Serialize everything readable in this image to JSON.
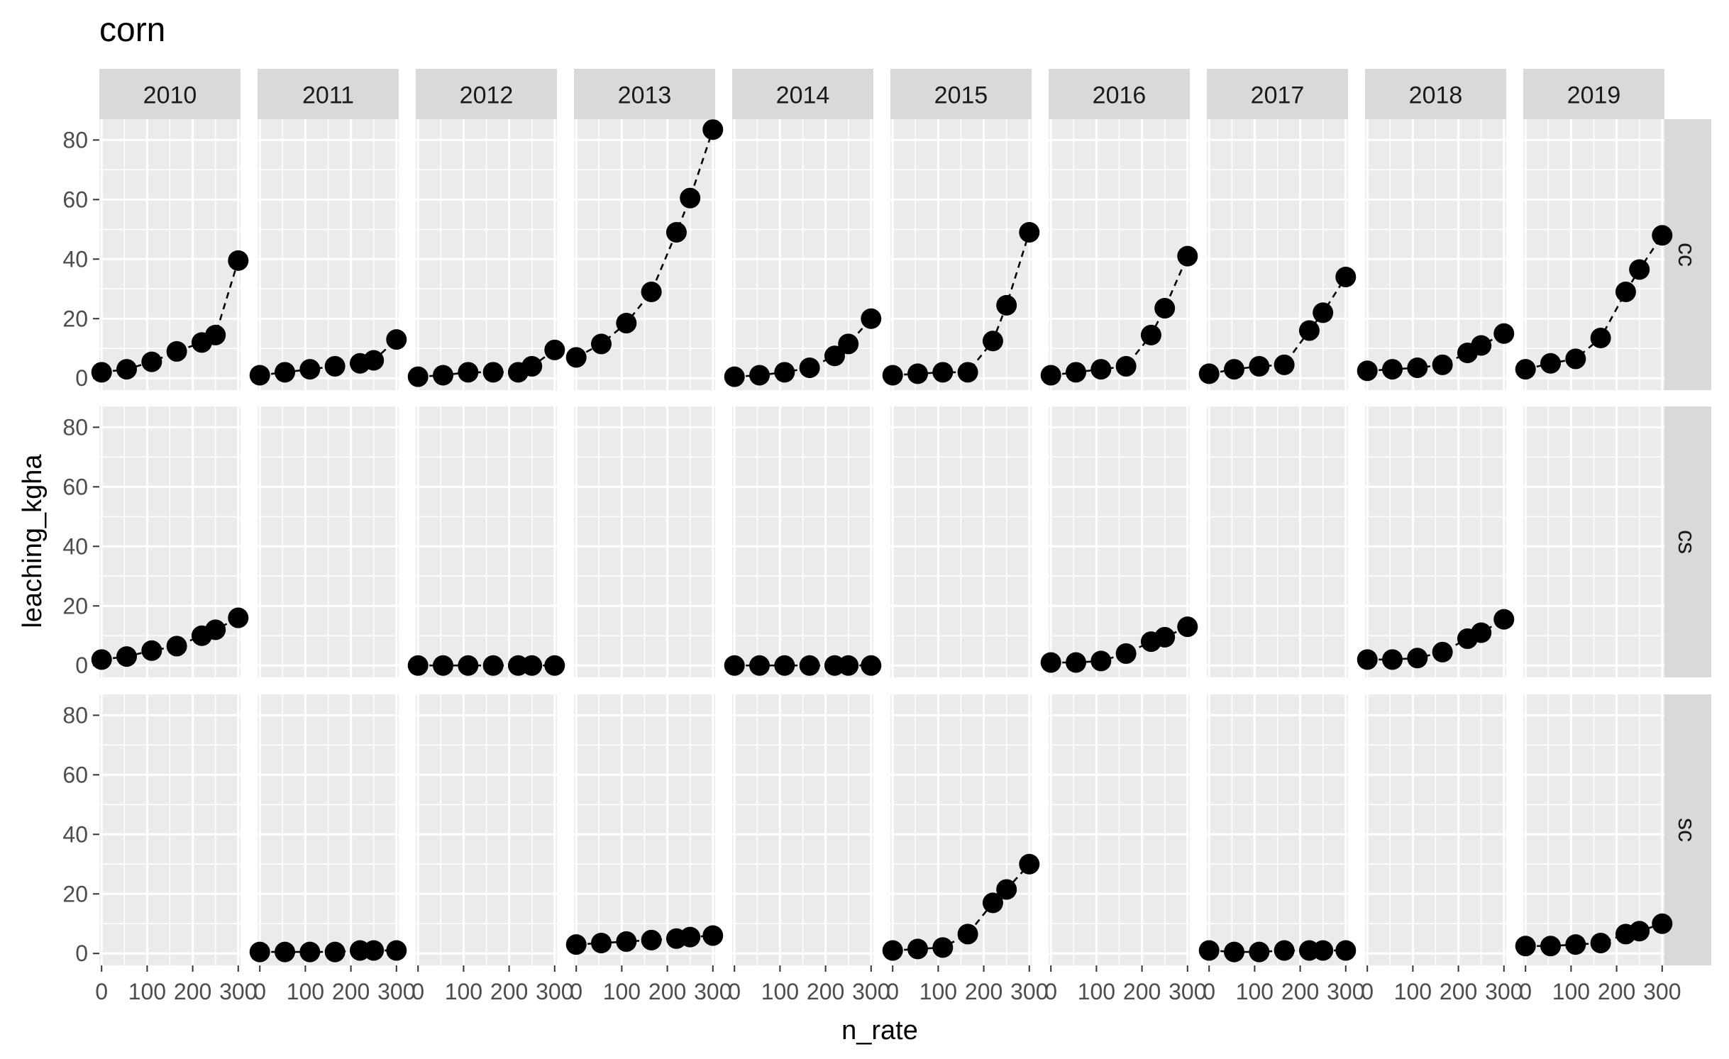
{
  "chart_data": {
    "type": "scatter",
    "title": "corn",
    "xlabel": "n_rate",
    "ylabel": "leaching_kgha",
    "xlim": [
      -5,
      305
    ],
    "ylim": [
      -4,
      87
    ],
    "x_ticks": [
      0,
      100,
      200,
      300
    ],
    "x_tick_labels": [
      "0",
      "100",
      "200",
      "300"
    ],
    "y_ticks": [
      0,
      20,
      40,
      60,
      80
    ],
    "y_tick_labels": [
      "0",
      "20",
      "40",
      "60",
      "80"
    ],
    "x": [
      0,
      55,
      110,
      165,
      220,
      250,
      300
    ],
    "columns": [
      "2010",
      "2011",
      "2012",
      "2013",
      "2014",
      "2015",
      "2016",
      "2017",
      "2018",
      "2019"
    ],
    "rows": [
      "cc",
      "cs",
      "sc"
    ],
    "line_style": "dashed",
    "grid": true,
    "legend": "none",
    "panels": [
      {
        "row": "cc",
        "col": "2010",
        "y": [
          2,
          3,
          5.5,
          9,
          12,
          14.5,
          39.5
        ]
      },
      {
        "row": "cc",
        "col": "2011",
        "y": [
          1,
          2,
          3,
          4,
          5,
          6,
          13
        ]
      },
      {
        "row": "cc",
        "col": "2012",
        "y": [
          0.5,
          1,
          2,
          2,
          2,
          4,
          9.5
        ]
      },
      {
        "row": "cc",
        "col": "2013",
        "y": [
          7,
          11.5,
          18.5,
          29,
          49,
          60.5,
          83.5
        ]
      },
      {
        "row": "cc",
        "col": "2014",
        "y": [
          0.5,
          1,
          2,
          3.5,
          7.5,
          11.5,
          20
        ]
      },
      {
        "row": "cc",
        "col": "2015",
        "y": [
          1,
          1.5,
          2,
          2,
          12.5,
          24.5,
          49
        ]
      },
      {
        "row": "cc",
        "col": "2016",
        "y": [
          1,
          2,
          3,
          4,
          14.5,
          23.5,
          41
        ]
      },
      {
        "row": "cc",
        "col": "2017",
        "y": [
          1.5,
          3,
          4,
          4.5,
          16,
          22,
          34
        ]
      },
      {
        "row": "cc",
        "col": "2018",
        "y": [
          2.5,
          3,
          3.5,
          4.5,
          8.5,
          11,
          15
        ]
      },
      {
        "row": "cc",
        "col": "2019",
        "y": [
          3,
          5,
          6.5,
          13.5,
          29,
          36.5,
          48
        ]
      },
      {
        "row": "cs",
        "col": "2010",
        "y": [
          2,
          3,
          5,
          6.5,
          10,
          12,
          16
        ]
      },
      {
        "row": "cs",
        "col": "2012",
        "y": [
          0,
          0,
          0,
          0,
          0,
          0,
          0
        ]
      },
      {
        "row": "cs",
        "col": "2014",
        "y": [
          0,
          0,
          0,
          0,
          0,
          0,
          0
        ]
      },
      {
        "row": "cs",
        "col": "2016",
        "y": [
          1,
          1,
          1.5,
          4,
          8,
          9.5,
          13
        ]
      },
      {
        "row": "cs",
        "col": "2018",
        "y": [
          2,
          2,
          2.5,
          4.5,
          9,
          11,
          15.5
        ]
      },
      {
        "row": "sc",
        "col": "2011",
        "y": [
          0.5,
          0.5,
          0.5,
          0.5,
          1,
          1,
          1
        ]
      },
      {
        "row": "sc",
        "col": "2013",
        "y": [
          3,
          3.5,
          4,
          4.5,
          5,
          5.5,
          6
        ]
      },
      {
        "row": "sc",
        "col": "2015",
        "y": [
          1,
          1.5,
          2,
          6.5,
          17,
          21.5,
          30
        ]
      },
      {
        "row": "sc",
        "col": "2017",
        "y": [
          1,
          0.5,
          0.5,
          1,
          1,
          1,
          1
        ]
      },
      {
        "row": "sc",
        "col": "2019",
        "y": [
          2.5,
          2.5,
          3,
          3.5,
          6.5,
          7.5,
          10
        ]
      }
    ]
  }
}
